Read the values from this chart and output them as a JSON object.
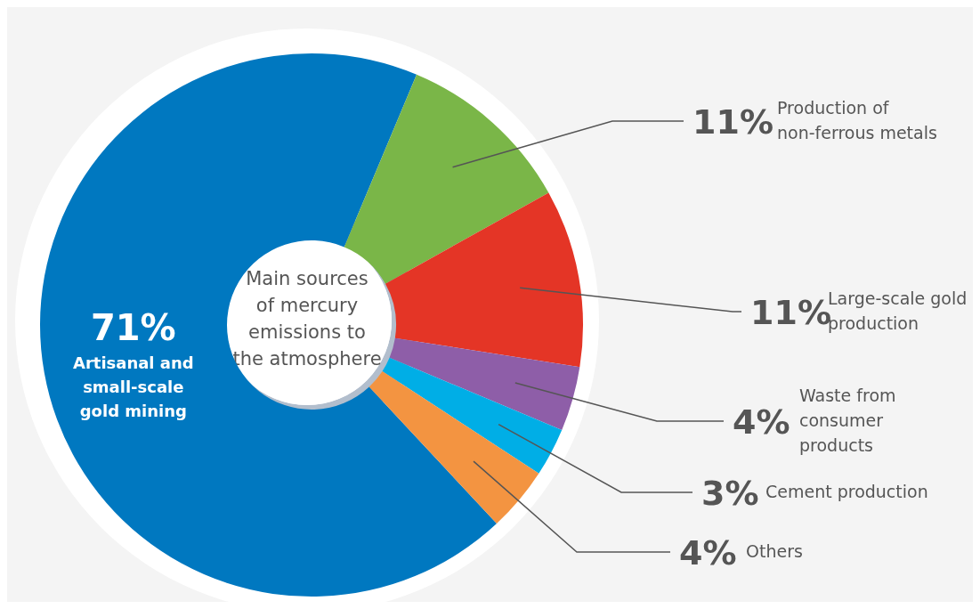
{
  "chart_data": {
    "type": "donut",
    "title": "Main sources of mercury emissions to the atmosphere",
    "categories": [
      "Artisanal and small-scale gold mining",
      "Production of non-ferrous metals",
      "Large-scale gold production",
      "Waste from consumer products",
      "Cement production",
      "Others"
    ],
    "values": [
      71,
      11,
      11,
      4,
      3,
      4
    ],
    "value_labels": [
      "71%",
      "11%",
      "11%",
      "4%",
      "3%",
      "4%"
    ],
    "colors": [
      "#0078c0",
      "#7ab648",
      "#e43526",
      "#8e5ea8",
      "#00aee6",
      "#f39441"
    ]
  }
}
